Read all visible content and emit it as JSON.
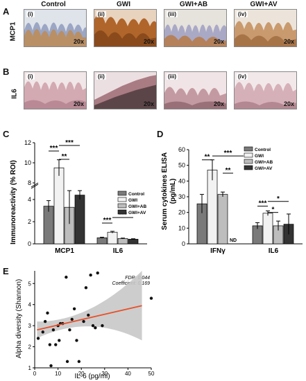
{
  "panels": {
    "A": {
      "letter": "A",
      "row_label": "MCP1"
    },
    "B": {
      "letter": "B",
      "row_label": "IL6"
    },
    "C": {
      "letter": "C"
    },
    "D": {
      "letter": "D"
    },
    "E": {
      "letter": "E"
    }
  },
  "groups": [
    "Control",
    "GWI",
    "GWI+AB",
    "GWI+AV"
  ],
  "tiles": {
    "tags": [
      "(i)",
      "(ii)",
      "(iii)",
      "(iv)"
    ],
    "magnification": "20x"
  },
  "colors": {
    "control": "#7a7a7a",
    "gwi": "#f2f2f2",
    "gwi_ab": "#bdbdbd",
    "gwi_av": "#333333",
    "mcp1_stain": "#b56a2c",
    "il6_stain": "#c89aa0",
    "fit_line": "#e8502a",
    "ci_band": "#c8c8c8"
  },
  "chart_data": [
    {
      "panel": "C",
      "type": "bar",
      "ylabel": "Immunoreactivity (% ROI)",
      "categories": [
        "MCP1",
        "IL6"
      ],
      "ytick_labels_lower": [
        "0",
        "2",
        "4"
      ],
      "ytick_labels_upper": [
        "8",
        "10",
        "12"
      ],
      "axis_break": [
        5,
        8
      ],
      "series": [
        {
          "name": "Control",
          "values": [
            3.4,
            0.55
          ],
          "errors": [
            0.5,
            0.05
          ]
        },
        {
          "name": "GWI",
          "values": [
            9.5,
            1.05
          ],
          "errors": [
            0.8,
            0.08
          ]
        },
        {
          "name": "GWI+AB",
          "values": [
            3.3,
            0.48
          ],
          "errors": [
            1.5,
            0.04
          ]
        },
        {
          "name": "GWI+AV",
          "values": [
            4.4,
            0.42
          ],
          "errors": [
            0.4,
            0.04
          ]
        }
      ],
      "significance": [
        "***",
        "**",
        "***",
        "***",
        "***"
      ],
      "legend": [
        "Control",
        "GWI",
        "GWI+AB",
        "GWI+AV"
      ]
    },
    {
      "panel": "D",
      "type": "bar",
      "ylabel": "Serum cytokines ELISA (pg/mL)",
      "categories": [
        "IFNγ",
        "IL6"
      ],
      "ylim": [
        0,
        60
      ],
      "ytick_labels": [
        "0",
        "10",
        "20",
        "30",
        "40",
        "50",
        "60"
      ],
      "series": [
        {
          "name": "Control",
          "values": [
            25.5,
            11.5
          ],
          "errors": [
            6,
            2
          ]
        },
        {
          "name": "GWI",
          "values": [
            47,
            19.5
          ],
          "errors": [
            6.5,
            1.5
          ]
        },
        {
          "name": "GWI+AB",
          "values": [
            31.5,
            11.5
          ],
          "errors": [
            1.5,
            3
          ]
        },
        {
          "name": "GWI+AV",
          "values": [
            null,
            12.5
          ],
          "errors": [
            null,
            6.5
          ]
        }
      ],
      "nd_label": "ND",
      "significance": [
        "**",
        "***",
        "**",
        "***",
        "*",
        "*"
      ],
      "legend": [
        "Control",
        "GWI",
        "GWI+AB",
        "GWI+AV"
      ]
    },
    {
      "panel": "E",
      "type": "scatter",
      "xlabel": "IL-6 (pg/ml)",
      "ylabel": "Alpha diversity (Shannon)",
      "xlim": [
        0,
        50
      ],
      "ylim": [
        1,
        5.6
      ],
      "xtick_labels": [
        "0",
        "10",
        "20",
        "30",
        "40",
        "50"
      ],
      "ytick_labels": [
        "1",
        "2",
        "3",
        "4",
        "5"
      ],
      "annotation_fdr": "FDR: 0.044",
      "annotation_coef": "Coefficient: 0.169",
      "points": [
        [
          1.5,
          2.4
        ],
        [
          3.5,
          2.7
        ],
        [
          4.5,
          3.2
        ],
        [
          5.5,
          3.6
        ],
        [
          6.5,
          2.1
        ],
        [
          7,
          1.1
        ],
        [
          8,
          2.8
        ],
        [
          9,
          2.1
        ],
        [
          10,
          3.0
        ],
        [
          10.5,
          2.3
        ],
        [
          11,
          3.1
        ],
        [
          12,
          3.1
        ],
        [
          13.5,
          5.3
        ],
        [
          14,
          1.3
        ],
        [
          15,
          2.8
        ],
        [
          16,
          3.3
        ],
        [
          17,
          3.8
        ],
        [
          18,
          2.3
        ],
        [
          19,
          1.3
        ],
        [
          21,
          3.2
        ],
        [
          22,
          4.8
        ],
        [
          23,
          3.5
        ],
        [
          24,
          5.4
        ],
        [
          25,
          3.0
        ],
        [
          26,
          2.9
        ],
        [
          27,
          5.5
        ],
        [
          29,
          3.0
        ],
        [
          50,
          4.3
        ]
      ],
      "fit": {
        "x0": 1,
        "y0": 2.8,
        "x1": 46,
        "y1": 3.95
      }
    }
  ]
}
